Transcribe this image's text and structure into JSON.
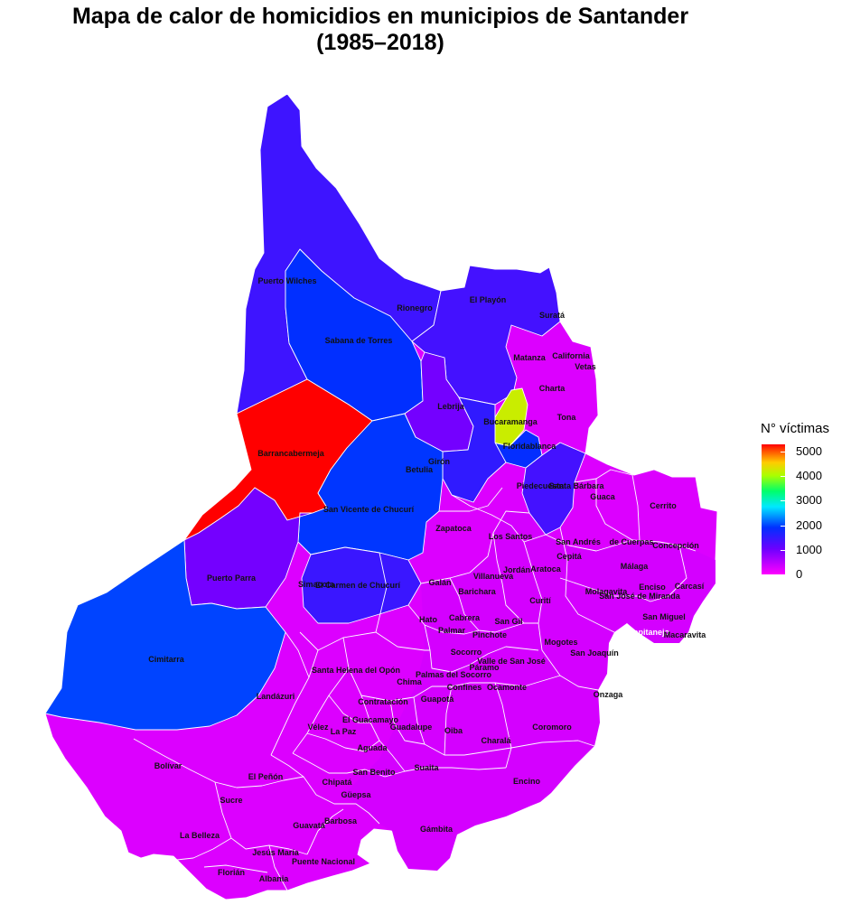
{
  "chart_data": {
    "type": "heatmap",
    "title_line1": "Mapa de calor de homicidios en municipios de Santander",
    "title_line2": "(1985–2018)",
    "legend": {
      "title": "N° víctimas",
      "ticks": [
        5000,
        4000,
        3000,
        2000,
        1000,
        0
      ],
      "range": [
        0,
        5300
      ],
      "placement": "right"
    },
    "colors": {
      "max": "#ff0000",
      "high_mid": "#ffaa00",
      "mid": "#22ff33",
      "low_mid": "#2255ff",
      "low": "#8a00ff",
      "min": "#ff00aa"
    },
    "municipalities": [
      {
        "name": "Puerto Wilches",
        "value": 480
      },
      {
        "name": "Sabana de Torres",
        "value": 820
      },
      {
        "name": "Rionegro",
        "value": 450
      },
      {
        "name": "El Playón",
        "value": 420
      },
      {
        "name": "Suratá",
        "value": 40
      },
      {
        "name": "Matanza",
        "value": 40
      },
      {
        "name": "California",
        "value": 15
      },
      {
        "name": "Vetas",
        "value": 10
      },
      {
        "name": "Charta",
        "value": 15
      },
      {
        "name": "Tona",
        "value": 60
      },
      {
        "name": "Lebrija",
        "value": 250
      },
      {
        "name": "Bucaramanga",
        "value": 3500
      },
      {
        "name": "Floridablanca",
        "value": 800
      },
      {
        "name": "Barrancabermeja",
        "value": 5300
      },
      {
        "name": "Girón",
        "value": 550
      },
      {
        "name": "Betulia",
        "value": 120
      },
      {
        "name": "Piedecuesta",
        "value": 450
      },
      {
        "name": "Santa Bárbara",
        "value": 20
      },
      {
        "name": "Guaca",
        "value": 30
      },
      {
        "name": "Cerrito",
        "value": 30
      },
      {
        "name": "San Vicente de Chucurí",
        "value": 850
      },
      {
        "name": "Zapatoca",
        "value": 100
      },
      {
        "name": "Los Santos",
        "value": 80
      },
      {
        "name": "San Andrés",
        "value": 40
      },
      {
        "name": "de Cuerpas",
        "value": 40
      },
      {
        "name": "Concepción",
        "value": 30
      },
      {
        "name": "Cepitá",
        "value": 10
      },
      {
        "name": "Puerto Parra",
        "value": 250
      },
      {
        "name": "Simacota",
        "value": 300
      },
      {
        "name": "El Carmen de Chucurí",
        "value": 500
      },
      {
        "name": "Jordán",
        "value": 5
      },
      {
        "name": "Aratoca",
        "value": 30
      },
      {
        "name": "Málaga",
        "value": 60
      },
      {
        "name": "Enciso",
        "value": 15
      },
      {
        "name": "Carcasí",
        "value": 15
      },
      {
        "name": "Galán",
        "value": 20
      },
      {
        "name": "Villanueva",
        "value": 30
      },
      {
        "name": "Barichara",
        "value": 20
      },
      {
        "name": "Curití",
        "value": 40
      },
      {
        "name": "Molagavita",
        "value": 15
      },
      {
        "name": "San José de Miranda",
        "value": 15
      },
      {
        "name": "Hato",
        "value": 10
      },
      {
        "name": "Cabrera",
        "value": 5
      },
      {
        "name": "Palmar",
        "value": 5
      },
      {
        "name": "San Gil",
        "value": 200
      },
      {
        "name": "Pinchote",
        "value": 15
      },
      {
        "name": "San Miguel",
        "value": 10
      },
      {
        "name": "Capitanejo",
        "value": 20
      },
      {
        "name": "Macaravita",
        "value": 10
      },
      {
        "name": "Mogotes",
        "value": 50
      },
      {
        "name": "San Joaquín",
        "value": 15
      },
      {
        "name": "Cimitarra",
        "value": 900
      },
      {
        "name": "Socorro",
        "value": 90
      },
      {
        "name": "Valle de San José",
        "value": 20
      },
      {
        "name": "Páramo",
        "value": 10
      },
      {
        "name": "Santa Helena del Opón",
        "value": 150
      },
      {
        "name": "Chima",
        "value": 20
      },
      {
        "name": "Palmas del Socorro",
        "value": 10
      },
      {
        "name": "Confines",
        "value": 10
      },
      {
        "name": "Ocamonte",
        "value": 15
      },
      {
        "name": "Landázuri",
        "value": 250
      },
      {
        "name": "Contratación",
        "value": 20
      },
      {
        "name": "Guapotá",
        "value": 10
      },
      {
        "name": "Onzaga",
        "value": 30
      },
      {
        "name": "El Guacamayo",
        "value": 20
      },
      {
        "name": "Vélez",
        "value": 150
      },
      {
        "name": "La Paz",
        "value": 60
      },
      {
        "name": "Guadalupe",
        "value": 20
      },
      {
        "name": "Oiba",
        "value": 40
      },
      {
        "name": "Coromoro",
        "value": 20
      },
      {
        "name": "Aguada",
        "value": 15
      },
      {
        "name": "Charalá",
        "value": 60
      },
      {
        "name": "Bolívar",
        "value": 200
      },
      {
        "name": "El Peñón",
        "value": 80
      },
      {
        "name": "San Benito",
        "value": 15
      },
      {
        "name": "Suaita",
        "value": 50
      },
      {
        "name": "Chipatá",
        "value": 30
      },
      {
        "name": "Encino",
        "value": 10
      },
      {
        "name": "Güepsa",
        "value": 15
      },
      {
        "name": "Sucre",
        "value": 100
      },
      {
        "name": "Barbosa",
        "value": 100
      },
      {
        "name": "Guavatá",
        "value": 40
      },
      {
        "name": "Gámbita",
        "value": 20
      },
      {
        "name": "La Belleza",
        "value": 80
      },
      {
        "name": "Jesús María",
        "value": 30
      },
      {
        "name": "Puente Nacional",
        "value": 70
      },
      {
        "name": "Florián",
        "value": 60
      },
      {
        "name": "Albania",
        "value": 20
      }
    ]
  }
}
